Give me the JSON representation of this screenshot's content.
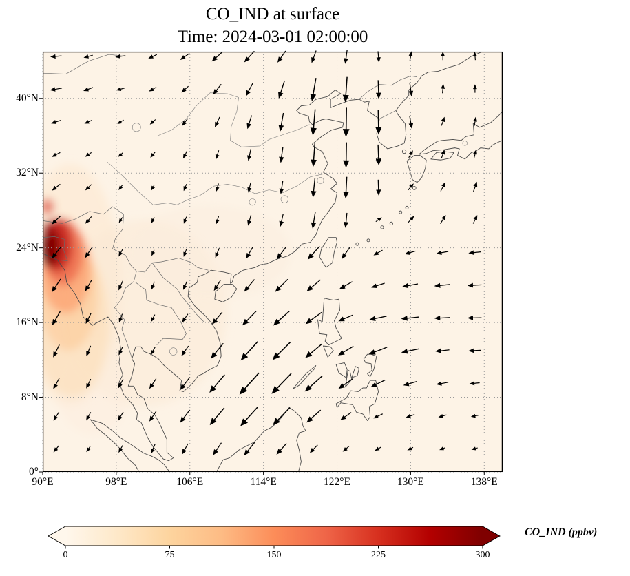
{
  "title": {
    "line1": "CO_IND at surface",
    "line2": "Time: 2024-03-01 02:00:00"
  },
  "axes": {
    "x_ticks": [
      {
        "v": 90,
        "label": "90°E"
      },
      {
        "v": 98,
        "label": "98°E"
      },
      {
        "v": 106,
        "label": "106°E"
      },
      {
        "v": 114,
        "label": "114°E"
      },
      {
        "v": 122,
        "label": "122°E"
      },
      {
        "v": 130,
        "label": "130°E"
      },
      {
        "v": 138,
        "label": "138°E"
      }
    ],
    "y_ticks": [
      {
        "v": 0,
        "label": "0°"
      },
      {
        "v": 8,
        "label": "8°N"
      },
      {
        "v": 16,
        "label": "16°N"
      },
      {
        "v": 24,
        "label": "24°N"
      },
      {
        "v": 32,
        "label": "32°N"
      },
      {
        "v": 40,
        "label": "40°N"
      }
    ],
    "lon_range": [
      90,
      140
    ],
    "lat_range": [
      0,
      45
    ]
  },
  "colorbar": {
    "label": "CO_IND (ppbv)",
    "ticks": [
      "0",
      "75",
      "150",
      "225",
      "300"
    ],
    "min": 0,
    "max": 300,
    "colors": [
      "#fff7ec",
      "#fee8c8",
      "#fdd49e",
      "#fdbb84",
      "#fc8d59",
      "#ef6548",
      "#d7301f",
      "#b30000",
      "#7f0000"
    ]
  },
  "chart_data": {
    "type": "heatmap",
    "title": "CO_IND at surface",
    "time": "2024-03-01 02:00:00",
    "variable": "CO_IND",
    "level": "surface",
    "units": "ppbv",
    "colormap": "OrRd",
    "xlim": [
      90,
      140
    ],
    "ylim": [
      0,
      45
    ],
    "value_range": [
      0,
      300
    ],
    "grid": "dotted graticule every 8 degrees",
    "field": {
      "background_level_ppbv": 0,
      "hotspot": {
        "lon": 91.5,
        "lat": 24,
        "approx_peak_ppbv": 300,
        "note": "dark-red CO maximum at western map edge near 24N with orange plume extending south along 90-96E down to about 10N"
      }
    },
    "wind_grid": {
      "comment": "quiver arrows: per row [direction_deg_ccw_from_east, length_px]",
      "lons": [
        91.5,
        95,
        98.5,
        102,
        105.5,
        109,
        112.5,
        116,
        119.5,
        123,
        126.5,
        130,
        133.5,
        137
      ],
      "rows": [
        {
          "lat": 44.5,
          "uv": [
            [
              185,
              11
            ],
            [
              195,
              9
            ],
            [
              188,
              10
            ],
            [
              205,
              9
            ],
            [
              215,
              11
            ],
            [
              222,
              14
            ],
            [
              228,
              15
            ],
            [
              235,
              14
            ],
            [
              250,
              13
            ],
            [
              262,
              14
            ],
            [
              275,
              11
            ],
            [
              80,
              9
            ],
            [
              90,
              8
            ],
            [
              95,
              8
            ]
          ]
        },
        {
          "lat": 41,
          "uv": [
            [
              190,
              12
            ],
            [
              200,
              10
            ],
            [
              195,
              8
            ],
            [
              210,
              8
            ],
            [
              222,
              9
            ],
            [
              232,
              13
            ],
            [
              242,
              15
            ],
            [
              252,
              19
            ],
            [
              260,
              24
            ],
            [
              266,
              26
            ],
            [
              272,
              19
            ],
            [
              278,
              14
            ],
            [
              85,
              9
            ],
            [
              90,
              8
            ]
          ]
        },
        {
          "lat": 37.5,
          "uv": [
            [
              198,
              10
            ],
            [
              205,
              8
            ],
            [
              212,
              7
            ],
            [
              222,
              7
            ],
            [
              232,
              9
            ],
            [
              245,
              11
            ],
            [
              253,
              14
            ],
            [
              260,
              19
            ],
            [
              265,
              27
            ],
            [
              269,
              30
            ],
            [
              271,
              25
            ],
            [
              280,
              13
            ],
            [
              70,
              9
            ],
            [
              80,
              9
            ]
          ]
        },
        {
          "lat": 34,
          "uv": [
            [
              208,
              9
            ],
            [
              215,
              7
            ],
            [
              222,
              6
            ],
            [
              230,
              7
            ],
            [
              243,
              8
            ],
            [
              252,
              9
            ],
            [
              258,
              12
            ],
            [
              262,
              16
            ],
            [
              266,
              24
            ],
            [
              269,
              26
            ],
            [
              272,
              21
            ],
            [
              60,
              8
            ],
            [
              70,
              9
            ],
            [
              75,
              9
            ]
          ]
        },
        {
          "lat": 30.5,
          "uv": [
            [
              218,
              10
            ],
            [
              224,
              8
            ],
            [
              233,
              6
            ],
            [
              242,
              6
            ],
            [
              248,
              7
            ],
            [
              253,
              8
            ],
            [
              257,
              10
            ],
            [
              261,
              13
            ],
            [
              264,
              20
            ],
            [
              267,
              22
            ],
            [
              272,
              16
            ],
            [
              50,
              8
            ],
            [
              62,
              10
            ],
            [
              70,
              10
            ]
          ]
        },
        {
          "lat": 27,
          "uv": [
            [
              224,
              12
            ],
            [
              229,
              9
            ],
            [
              238,
              6
            ],
            [
              244,
              6
            ],
            [
              249,
              7
            ],
            [
              252,
              8
            ],
            [
              254,
              11
            ],
            [
              257,
              13
            ],
            [
              261,
              17
            ],
            [
              264,
              15
            ],
            [
              35,
              7
            ],
            [
              48,
              9
            ],
            [
              58,
              10
            ],
            [
              64,
              9
            ]
          ]
        },
        {
          "lat": 23.5,
          "uv": [
            [
              232,
              14
            ],
            [
              236,
              12
            ],
            [
              242,
              8
            ],
            [
              247,
              6
            ],
            [
              250,
              8
            ],
            [
              248,
              10
            ],
            [
              240,
              13
            ],
            [
              233,
              16
            ],
            [
              228,
              18
            ],
            [
              235,
              15
            ],
            [
              210,
              10
            ],
            [
              196,
              11
            ],
            [
              190,
              12
            ],
            [
              186,
              12
            ]
          ]
        },
        {
          "lat": 20,
          "uv": [
            [
              236,
              16
            ],
            [
              240,
              13
            ],
            [
              246,
              10
            ],
            [
              250,
              8
            ],
            [
              246,
              9
            ],
            [
              238,
              12
            ],
            [
              230,
              16
            ],
            [
              225,
              18
            ],
            [
              220,
              18
            ],
            [
              210,
              15
            ],
            [
              198,
              14
            ],
            [
              190,
              16
            ],
            [
              186,
              16
            ],
            [
              183,
              14
            ]
          ]
        },
        {
          "lat": 16.5,
          "uv": [
            [
              240,
              16
            ],
            [
              244,
              12
            ],
            [
              250,
              9
            ],
            [
              242,
              8
            ],
            [
              236,
              10
            ],
            [
              230,
              16
            ],
            [
              226,
              20
            ],
            [
              222,
              22
            ],
            [
              216,
              20
            ],
            [
              203,
              16
            ],
            [
              192,
              18
            ],
            [
              186,
              18
            ],
            [
              183,
              16
            ],
            [
              181,
              14
            ]
          ]
        },
        {
          "lat": 13,
          "uv": [
            [
              244,
              14
            ],
            [
              248,
              11
            ],
            [
              245,
              9
            ],
            [
              240,
              9
            ],
            [
              235,
              12
            ],
            [
              231,
              20
            ],
            [
              228,
              26
            ],
            [
              225,
              26
            ],
            [
              220,
              22
            ],
            [
              211,
              18
            ],
            [
              201,
              20
            ],
            [
              192,
              18
            ],
            [
              186,
              14
            ],
            [
              183,
              12
            ]
          ]
        },
        {
          "lat": 9.5,
          "uv": [
            [
              241,
              12
            ],
            [
              245,
              10
            ],
            [
              241,
              10
            ],
            [
              236,
              12
            ],
            [
              233,
              16
            ],
            [
              230,
              24
            ],
            [
              228,
              30
            ],
            [
              226,
              29
            ],
            [
              222,
              24
            ],
            [
              215,
              18
            ],
            [
              206,
              16
            ],
            [
              196,
              14
            ],
            [
              190,
              12
            ],
            [
              186,
              10
            ]
          ]
        },
        {
          "lat": 6,
          "uv": [
            [
              237,
              10
            ],
            [
              241,
              9
            ],
            [
              239,
              10
            ],
            [
              236,
              12
            ],
            [
              233,
              16
            ],
            [
              230,
              23
            ],
            [
              228,
              27
            ],
            [
              226,
              25
            ],
            [
              222,
              19
            ],
            [
              215,
              13
            ],
            [
              206,
              10
            ],
            [
              200,
              9
            ],
            [
              196,
              8
            ],
            [
              191,
              7
            ]
          ]
        },
        {
          "lat": 2.5,
          "uv": [
            [
              231,
              8
            ],
            [
              236,
              7
            ],
            [
              241,
              8
            ],
            [
              246,
              10
            ],
            [
              241,
              12
            ],
            [
              236,
              15
            ],
            [
              231,
              17
            ],
            [
              228,
              15
            ],
            [
              226,
              11
            ],
            [
              221,
              8
            ],
            [
              211,
              7
            ],
            [
              206,
              6
            ],
            [
              201,
              6
            ],
            [
              196,
              6
            ]
          ]
        }
      ]
    }
  }
}
